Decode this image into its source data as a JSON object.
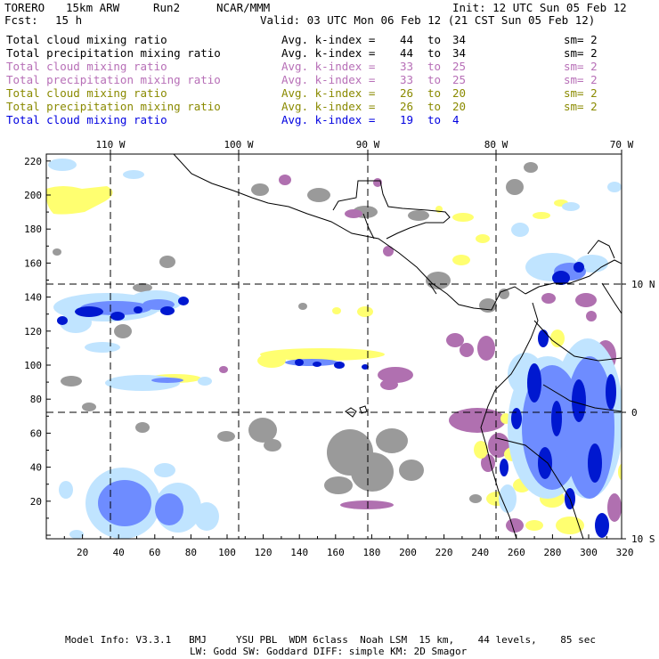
{
  "header": {
    "model": "TORERO",
    "resolution": "15km ARW",
    "run": "Run2",
    "org": "NCAR/MMM",
    "init": "Init: 12 UTC Sun 05 Feb 12",
    "fcst_label": "Fcst:",
    "fcst_value": "15 h",
    "valid": "Valid: 03 UTC Mon 06 Feb 12 (21 CST Sun 05 Feb 12)"
  },
  "legend": [
    {
      "field": "Total cloud mixing ratio",
      "index": "Avg. k-index =",
      "from": "44",
      "to_word": "to",
      "to": "34",
      "sm": "sm= 2",
      "color": "#000000"
    },
    {
      "field": "Total precipitation mixing ratio",
      "index": "Avg. k-index =",
      "from": "44",
      "to_word": "to",
      "to": "34",
      "sm": "sm= 2",
      "color": "#000000"
    },
    {
      "field": "Total cloud mixing ratio",
      "index": "Avg. k-index =",
      "from": "33",
      "to_word": "to",
      "to": "25",
      "sm": "sm= 2",
      "color": "#b76fb7"
    },
    {
      "field": "Total precipitation mixing ratio",
      "index": "Avg. k-index =",
      "from": "33",
      "to_word": "to",
      "to": "25",
      "sm": "sm= 2",
      "color": "#b76fb7"
    },
    {
      "field": "Total cloud mixing ratio",
      "index": "Avg. k-index =",
      "from": "26",
      "to_word": "to",
      "to": "20",
      "sm": "sm= 2",
      "color": "#8a8a00"
    },
    {
      "field": "Total precipitation mixing ratio",
      "index": "Avg. k-index =",
      "from": "26",
      "to_word": "to",
      "to": "20",
      "sm": "sm= 2",
      "color": "#8a8a00"
    },
    {
      "field": "Total cloud mixing ratio",
      "index": "Avg. k-index =",
      "from": "19",
      "to_word": "to",
      "to": "4",
      "sm": "",
      "color": "#0000e0"
    }
  ],
  "map": {
    "lon_labels": [
      "110 W",
      "100 W",
      "90 W",
      "80 W",
      "70 W"
    ],
    "lat_labels": [
      "10 N",
      "0",
      "10 S"
    ],
    "y_ticks": [
      "220",
      "200",
      "180",
      "160",
      "140",
      "120",
      "100",
      "80",
      "60",
      "40",
      "20"
    ],
    "x_ticks": [
      "20",
      "40",
      "60",
      "80",
      "100",
      "120",
      "140",
      "160",
      "180",
      "200",
      "220",
      "240",
      "260",
      "280",
      "300",
      "320"
    ],
    "colors": {
      "gray": "#9a9a9a",
      "magenta": "#b070b0",
      "yellow": "#ffff70",
      "blue": "#0018d0",
      "light_blue": "#c0e4ff",
      "mid_blue": "#6e8cff"
    }
  },
  "footer": {
    "line1": "Model Info: V3.3.1   BMJ     YSU PBL  WDM 6class  Noah LSM  15 km,    44 levels,    85 sec",
    "line2": "LW: Godd SW: Goddard DIFF: simple KM: 2D Smagor"
  }
}
